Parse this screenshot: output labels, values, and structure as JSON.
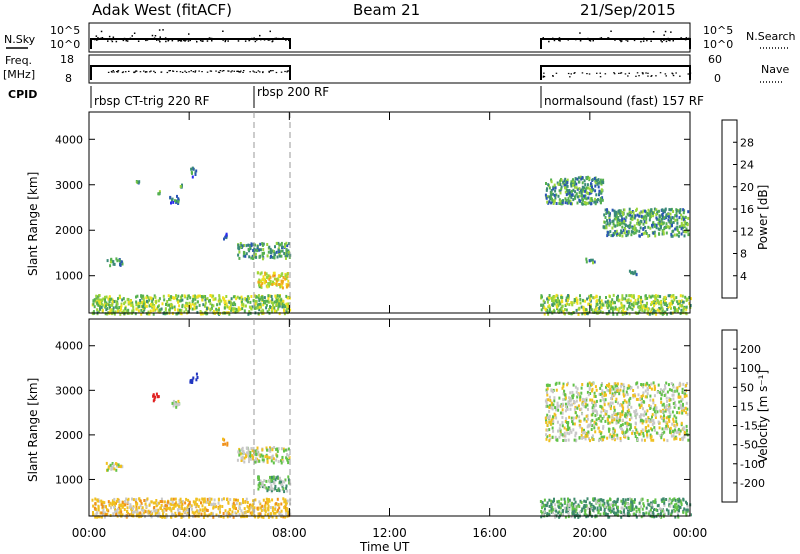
{
  "header": {
    "station": "Adak West (fitACF)",
    "beam": "Beam 21",
    "date": "21/Sep/2015"
  },
  "top_panels": {
    "nsky_label": "N.Sky",
    "nsky_ticks": [
      "10^5",
      "10^0"
    ],
    "freq_label": "Freq.",
    "freq_unit": "[MHz]",
    "freq_ticks": [
      "18",
      "8"
    ],
    "nsearch_label": "N.Search",
    "nsearch_ticks": [
      "10^5",
      "10^0"
    ],
    "nave_label": "Nave",
    "nave_ticks": [
      "60",
      "0"
    ],
    "cpid_label": "CPID",
    "cpid_modes": [
      {
        "label": "rbsp CT-trig 220 RF",
        "start": 0.1,
        "end": 6.5
      },
      {
        "label": "rbsp 200 RF",
        "start": 6.5,
        "end": 8.0
      },
      {
        "label": "normalsound (fast) 157 RF",
        "start": 18.0,
        "end": 24.0
      }
    ]
  },
  "axes": {
    "ylabel": "Slant Range [km]",
    "xlabel": "Time UT",
    "x_ticks": [
      "00:00",
      "04:00",
      "08:00",
      "12:00",
      "16:00",
      "20:00",
      "00:00"
    ],
    "y_ticks": [
      "1000",
      "2000",
      "3000",
      "4000"
    ]
  },
  "colorbars": {
    "power": {
      "label": "Power [dB]",
      "ticks": [
        "4",
        "8",
        "12",
        "16",
        "20",
        "24",
        "28"
      ],
      "colors": [
        "#2b2bf0",
        "#2a55b4",
        "#3a8a78",
        "#55b050",
        "#9ad53c",
        "#f0e020",
        "#f0a818",
        "#f07020",
        "#e83820",
        "#d81818"
      ]
    },
    "velocity": {
      "label": "Velocity [m s⁻¹]",
      "ticks": [
        "200",
        "100",
        "50",
        "15",
        "-15",
        "-50",
        "-100",
        "-200"
      ],
      "colors": [
        "#2035c0",
        "#2c5fa8",
        "#3e8a6c",
        "#62c248",
        "#c8c8c8",
        "#f0c020",
        "#f09018",
        "#f06018",
        "#e02020"
      ]
    }
  },
  "chart_data": {
    "type": "heatmap",
    "title": "Adak West (fitACF) Beam 21 21/Sep/2015",
    "xlabel": "Time UT",
    "ylabel": "Slant Range [km]",
    "xlim": [
      0,
      24
    ],
    "ylim": [
      180,
      4600
    ],
    "data_windows_hours": [
      [
        0.1,
        8.0
      ],
      [
        18.0,
        24.0
      ]
    ],
    "power_scatter_regions": [
      {
        "time": [
          0.7,
          1.3
        ],
        "range": [
          1230,
          1420
        ],
        "level": 8
      },
      {
        "time": [
          1.7,
          2.1
        ],
        "range": [
          3050,
          3120
        ],
        "level": 8
      },
      {
        "time": [
          2.6,
          2.8
        ],
        "range": [
          2800,
          2900
        ],
        "level": 12
      },
      {
        "time": [
          3.2,
          3.6
        ],
        "range": [
          2620,
          2800
        ],
        "level": 4
      },
      {
        "time": [
          3.6,
          3.8
        ],
        "range": [
          2950,
          3050
        ],
        "level": 8
      },
      {
        "time": [
          4.0,
          4.3
        ],
        "range": [
          3200,
          3400
        ],
        "level": 4
      },
      {
        "time": [
          5.3,
          5.5
        ],
        "range": [
          1800,
          1950
        ],
        "level": 4
      },
      {
        "time": [
          5.9,
          8.0
        ],
        "range": [
          1400,
          1750
        ],
        "level": 8
      },
      {
        "time": [
          6.7,
          8.0
        ],
        "range": [
          750,
          1100
        ],
        "level": 16
      },
      {
        "time": [
          18.0,
          24.0
        ],
        "range": [
          180,
          600
        ],
        "level": 12
      },
      {
        "time": [
          18.2,
          20.5
        ],
        "range": [
          2600,
          3200
        ],
        "level": 8
      },
      {
        "time": [
          20.5,
          23.9
        ],
        "range": [
          1900,
          2500
        ],
        "level": 8
      },
      {
        "time": [
          19.8,
          20.2
        ],
        "range": [
          1300,
          1400
        ],
        "level": 8
      },
      {
        "time": [
          21.5,
          22.0
        ],
        "range": [
          1050,
          1150
        ],
        "level": 8
      },
      {
        "time": [
          0.1,
          8.0
        ],
        "range": [
          180,
          600
        ],
        "level": 12
      }
    ],
    "velocity_scatter_regions": [
      {
        "time": [
          0.6,
          1.3
        ],
        "range": [
          1230,
          1420
        ],
        "velocity": 0
      },
      {
        "time": [
          2.5,
          2.8
        ],
        "range": [
          2780,
          2950
        ],
        "velocity": -250
      },
      {
        "time": [
          3.2,
          3.6
        ],
        "range": [
          2620,
          2800
        ],
        "velocity": 0
      },
      {
        "time": [
          4.0,
          4.3
        ],
        "range": [
          3200,
          3400
        ],
        "velocity": 250
      },
      {
        "time": [
          5.3,
          5.5
        ],
        "range": [
          1800,
          1950
        ],
        "velocity": -60
      },
      {
        "time": [
          5.9,
          8.0
        ],
        "range": [
          1400,
          1750
        ],
        "velocity": 0
      },
      {
        "time": [
          6.7,
          8.0
        ],
        "range": [
          750,
          1100
        ],
        "velocity": 20
      },
      {
        "time": [
          0.1,
          8.0
        ],
        "range": [
          180,
          600
        ],
        "velocity": -30
      },
      {
        "time": [
          18.0,
          24.0
        ],
        "range": [
          180,
          600
        ],
        "velocity": 30
      },
      {
        "time": [
          18.2,
          23.9
        ],
        "range": [
          1900,
          3200
        ],
        "velocity": 0
      }
    ]
  }
}
